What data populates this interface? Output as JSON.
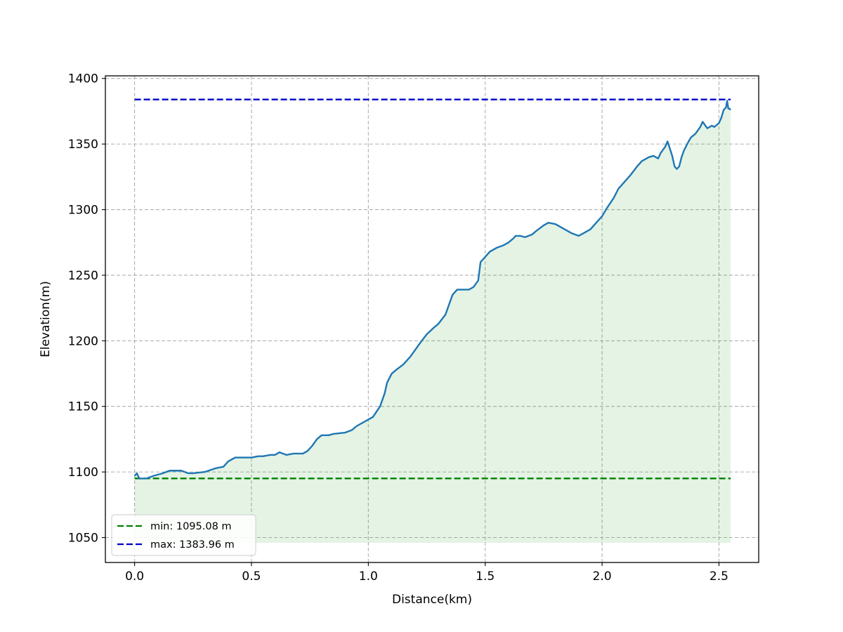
{
  "chart_data": {
    "type": "area",
    "title": "",
    "xlabel": "Distance(km)",
    "ylabel": "Elevation(m)",
    "xlim": [
      -0.125,
      2.67
    ],
    "ylim": [
      1031,
      1402
    ],
    "xticks": [
      0.0,
      0.5,
      1.0,
      1.5,
      2.0,
      2.5
    ],
    "xtick_labels": [
      "0.0",
      "0.5",
      "1.0",
      "1.5",
      "2.0",
      "2.5"
    ],
    "yticks": [
      1050,
      1100,
      1150,
      1200,
      1250,
      1300,
      1350,
      1400
    ],
    "ytick_labels": [
      "1050",
      "1100",
      "1150",
      "1200",
      "1250",
      "1300",
      "1350",
      "1400"
    ],
    "grid": true,
    "legend_position": "lower-left",
    "fill_baseline": 1046,
    "colors": {
      "line": "#1f77b4",
      "fill": "#2ca02c",
      "min_line": "#008000",
      "max_line": "#0000cd",
      "grid": "#b0b0b0"
    },
    "series": [
      {
        "x": [
          0.0,
          0.01,
          0.02,
          0.05,
          0.08,
          0.12,
          0.15,
          0.2,
          0.23,
          0.25,
          0.3,
          0.35,
          0.38,
          0.4,
          0.43,
          0.46,
          0.5,
          0.53,
          0.55,
          0.58,
          0.6,
          0.62,
          0.65,
          0.68,
          0.72,
          0.74,
          0.76,
          0.78,
          0.8,
          0.83,
          0.85,
          0.9,
          0.93,
          0.95,
          1.0,
          1.02,
          1.05,
          1.07,
          1.08,
          1.1,
          1.12,
          1.15,
          1.18,
          1.2,
          1.22,
          1.25,
          1.28,
          1.3,
          1.33,
          1.35,
          1.36,
          1.38,
          1.4,
          1.43,
          1.45,
          1.47,
          1.48,
          1.49,
          1.5,
          1.52,
          1.55,
          1.58,
          1.6,
          1.62,
          1.63,
          1.65,
          1.67,
          1.7,
          1.72,
          1.75,
          1.77,
          1.8,
          1.83,
          1.85,
          1.87,
          1.9,
          1.92,
          1.95,
          1.97,
          2.0,
          2.02,
          2.05,
          2.07,
          2.1,
          2.12,
          2.15,
          2.17,
          2.19,
          2.2,
          2.22,
          2.24,
          2.25,
          2.27,
          2.28,
          2.3,
          2.31,
          2.32,
          2.33,
          2.34,
          2.35,
          2.37,
          2.38,
          2.4,
          2.42,
          2.43,
          2.45,
          2.47,
          2.48,
          2.5,
          2.51,
          2.52,
          2.53,
          2.535,
          2.54,
          2.545,
          2.55
        ],
        "y": [
          1097,
          1099,
          1095,
          1095,
          1097,
          1099,
          1101,
          1101,
          1099,
          1099,
          1100,
          1103,
          1104,
          1108,
          1111,
          1111,
          1111,
          1112,
          1112,
          1113,
          1113,
          1115,
          1113,
          1114,
          1114,
          1116,
          1120,
          1125,
          1128,
          1128,
          1129,
          1130,
          1132,
          1135,
          1140,
          1142,
          1150,
          1160,
          1168,
          1175,
          1178,
          1182,
          1188,
          1193,
          1198,
          1205,
          1210,
          1213,
          1220,
          1230,
          1235,
          1239,
          1239,
          1239,
          1241,
          1246,
          1260,
          1262,
          1264,
          1268,
          1271,
          1273,
          1275,
          1278,
          1280,
          1280,
          1279,
          1281,
          1284,
          1288,
          1290,
          1289,
          1286,
          1284,
          1282,
          1280,
          1282,
          1285,
          1289,
          1295,
          1301,
          1309,
          1316,
          1322,
          1326,
          1333,
          1337,
          1339,
          1340,
          1341,
          1339,
          1343,
          1348,
          1352,
          1341,
          1333,
          1331,
          1333,
          1340,
          1345,
          1352,
          1355,
          1358,
          1363,
          1367,
          1362,
          1364,
          1363,
          1366,
          1370,
          1376,
          1378,
          1383,
          1377,
          1377,
          1376
        ]
      }
    ],
    "min_line": {
      "value": 1095.08,
      "x": [
        0.0,
        2.55
      ],
      "label": "min: 1095.08 m"
    },
    "max_line": {
      "value": 1383.96,
      "x": [
        0.0,
        2.55
      ],
      "label": "max: 1383.96 m"
    }
  }
}
